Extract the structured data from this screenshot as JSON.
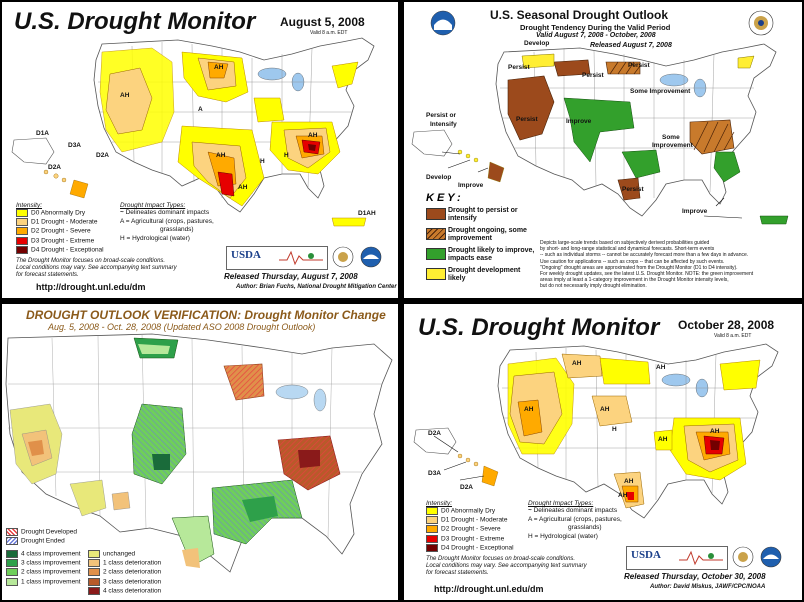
{
  "panel_tl": {
    "title": "U.S. Drought Monitor",
    "date": "August 5, 2008",
    "valid": "Valid 8 a.m. EDT",
    "region_labels": [
      "D1A",
      "D3A",
      "D2A",
      "D2A",
      "D1AH"
    ],
    "intensity_header": "Intensity:",
    "intensity": [
      "D0 Abnormally Dry",
      "D1 Drought - Moderate",
      "D2 Drought - Severe",
      "D3 Drought - Extreme",
      "D4 Drought - Exceptional"
    ],
    "impact_header": "Drought Impact Types:",
    "impacts": [
      "Delineates dominant impacts",
      "A = Agricultural (crops, pastures,",
      "grasslands)",
      "H = Hydrological (water)"
    ],
    "note": [
      "The Drought Monitor focuses on broad-scale conditions.",
      "Local conditions may vary. See accompanying text summary",
      "for forecast statements."
    ],
    "usda": "USDA",
    "released": "Released Thursday, August 7, 2008",
    "author": "Author: Brian Fuchs, National Drought Mitigation Center",
    "url": "http://drought.unl.edu/dm"
  },
  "panel_tr": {
    "title": "U.S. Seasonal Drought Outlook",
    "subtitle": "Drought Tendency During the Valid Period",
    "valid": "Valid August 7, 2008 - October, 2008",
    "released": "Released August 7, 2008",
    "labels": [
      "Develop",
      "Persist",
      "Persist",
      "Persist",
      "Some Improvement",
      "Persist or",
      "Intensify",
      "Persist",
      "Improve",
      "Some",
      "Improvement",
      "Develop",
      "Improve",
      "Persist",
      "Improve"
    ],
    "key_header": "KEY:",
    "key": [
      "Drought to persist or intensify",
      "Drought ongoing, some improvement",
      "Drought likely to improve, impacts ease",
      "Drought development likely"
    ],
    "desc": [
      "Depicts large-scale trends based on subjectively derived probabilities guided",
      "by short- and long-range statistical and dynamical forecasts. Short-term events",
      "-- such as individual storms -- cannot be accurately forecast more than a few days in advance.",
      "Use caution for applications -- such as crops -- that can be affected by such events.",
      "\"Ongoing\" drought areas are approximated from the Drought Monitor (D1 to D4 intensity).",
      "For weekly drought updates, see the latest U.S. Drought Monitor. NOTE: the green improvement",
      "areas imply at least a 1-category improvement in the Drought Monitor intensity levels,",
      "but do not necessarily imply drought elimination."
    ]
  },
  "panel_bl": {
    "title": "DROUGHT OUTLOOK VERIFICATION: Drought Monitor Change",
    "subtitle": "Aug. 5, 2008 - Oct. 28, 2008 (Updated ASO 2008 Drought Outlook)",
    "legend_top": [
      "Drought Developed",
      "Drought Ended"
    ],
    "legend_left": [
      "4 class improvement",
      "3 class improvement",
      "2 class improvement",
      "1 class improvement"
    ],
    "legend_right": [
      "unchanged",
      "1 class deterioration",
      "2 class deterioration",
      "3 class deterioration",
      "4 class deterioration"
    ]
  },
  "panel_br": {
    "title": "U.S. Drought Monitor",
    "date": "October 28, 2008",
    "valid": "Valid 8 a.m. EDT",
    "region_labels": [
      "D2A",
      "D3A",
      "D2A"
    ],
    "intensity_header": "Intensity:",
    "intensity": [
      "D0 Abnormally Dry",
      "D1 Drought - Moderate",
      "D2 Drought - Severe",
      "D3 Drought - Extreme",
      "D4 Drought - Exceptional"
    ],
    "impact_header": "Drought Impact Types:",
    "impacts": [
      "Delineates dominant impacts",
      "A = Agricultural (crops, pastures,",
      "grasslands)",
      "H = Hydrological (water)"
    ],
    "note": [
      "The Drought Monitor focuses on broad-scale conditions.",
      "Local conditions may vary. See accompanying text summary",
      "for forecast statements."
    ],
    "usda": "USDA",
    "released": "Released Thursday, October 30, 2008",
    "author": "Author: David Miskus, JAWF/CPC/NOAA",
    "url": "http://drought.unl.edu/dm"
  },
  "map_labels": {
    "ah": "AH",
    "a": "A",
    "h": "H"
  },
  "colors": {
    "d0": "#ffff00",
    "d1": "#fcd37f",
    "d2": "#ffaa00",
    "d3": "#e60000",
    "d4": "#730000",
    "persist": "#9c4a1c",
    "some_improve": "#c87a2c",
    "improve": "#33a02c",
    "develop": "#ffee33",
    "ov_dev": "#e84040",
    "ov_end": "#6a7ad8",
    "ov_i4": "#1a6b3a",
    "ov_i3": "#2ea04a",
    "ov_i2": "#6fcf5a",
    "ov_i1": "#b7e89a",
    "ov_u": "#e8e87a",
    "ov_d1": "#f2c27a",
    "ov_d2": "#e0904a",
    "ov_d3": "#b85a2a",
    "ov_d4": "#8a1a1a"
  }
}
